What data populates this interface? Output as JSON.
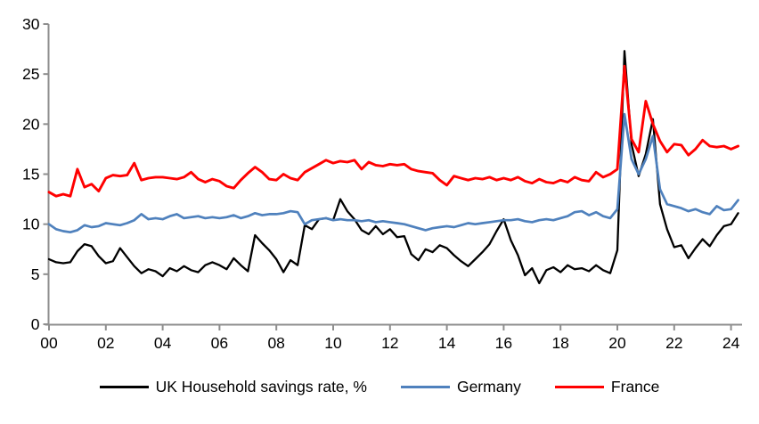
{
  "chart_data": {
    "type": "line",
    "title": "",
    "xlabel": "",
    "ylabel": "",
    "grid": false,
    "legend_position": "bottom-center",
    "axis_color": "#8e8e8e",
    "ylim": [
      0,
      30
    ],
    "xlim": [
      2000,
      2024.6
    ],
    "y_ticks": [
      0,
      5,
      10,
      15,
      20,
      25,
      30
    ],
    "x_tick_years": [
      2000,
      2002,
      2004,
      2006,
      2008,
      2010,
      2012,
      2014,
      2016,
      2018,
      2020,
      2022,
      2024
    ],
    "x_tick_labels": [
      "00",
      "02",
      "04",
      "06",
      "08",
      "10",
      "12",
      "14",
      "16",
      "18",
      "20",
      "22",
      "24"
    ],
    "x": [
      2000.0,
      2000.25,
      2000.5,
      2000.75,
      2001.0,
      2001.25,
      2001.5,
      2001.75,
      2002.0,
      2002.25,
      2002.5,
      2002.75,
      2003.0,
      2003.25,
      2003.5,
      2003.75,
      2004.0,
      2004.25,
      2004.5,
      2004.75,
      2005.0,
      2005.25,
      2005.5,
      2005.75,
      2006.0,
      2006.25,
      2006.5,
      2006.75,
      2007.0,
      2007.25,
      2007.5,
      2007.75,
      2008.0,
      2008.25,
      2008.5,
      2008.75,
      2009.0,
      2009.25,
      2009.5,
      2009.75,
      2010.0,
      2010.25,
      2010.5,
      2010.75,
      2011.0,
      2011.25,
      2011.5,
      2011.75,
      2012.0,
      2012.25,
      2012.5,
      2012.75,
      2013.0,
      2013.25,
      2013.5,
      2013.75,
      2014.0,
      2014.25,
      2014.5,
      2014.75,
      2015.0,
      2015.25,
      2015.5,
      2015.75,
      2016.0,
      2016.25,
      2016.5,
      2016.75,
      2017.0,
      2017.25,
      2017.5,
      2017.75,
      2018.0,
      2018.25,
      2018.5,
      2018.75,
      2019.0,
      2019.25,
      2019.5,
      2019.75,
      2020.0,
      2020.25,
      2020.5,
      2020.75,
      2021.0,
      2021.25,
      2021.5,
      2021.75,
      2022.0,
      2022.25,
      2022.5,
      2022.75,
      2023.0,
      2023.25,
      2023.5,
      2023.75,
      2024.0,
      2024.25
    ],
    "series": [
      {
        "name": "UK Household savings rate, %",
        "color": "#000000",
        "values": [
          6.5,
          6.2,
          6.1,
          6.2,
          7.3,
          8.0,
          7.8,
          6.8,
          6.1,
          6.3,
          7.6,
          6.7,
          5.8,
          5.1,
          5.5,
          5.3,
          4.8,
          5.6,
          5.3,
          5.8,
          5.4,
          5.2,
          5.9,
          6.2,
          5.9,
          5.5,
          6.6,
          5.9,
          5.3,
          8.9,
          8.1,
          7.4,
          6.5,
          5.2,
          6.4,
          5.9,
          9.9,
          9.5,
          10.5,
          10.6,
          10.4,
          12.5,
          11.3,
          10.5,
          9.4,
          9.0,
          9.8,
          9.0,
          9.5,
          8.7,
          8.8,
          7.0,
          6.4,
          7.5,
          7.2,
          7.9,
          7.6,
          6.9,
          6.3,
          5.8,
          6.5,
          7.2,
          8.0,
          9.3,
          10.5,
          8.4,
          6.9,
          4.9,
          5.6,
          4.1,
          5.4,
          5.7,
          5.2,
          5.9,
          5.5,
          5.6,
          5.3,
          5.9,
          5.4,
          5.1,
          7.4,
          27.3,
          18.0,
          14.8,
          17.0,
          20.5,
          12.0,
          9.5,
          7.7,
          7.9,
          6.6,
          7.6,
          8.5,
          7.8,
          8.9,
          9.8,
          10.0,
          11.1
        ]
      },
      {
        "name": "Germany",
        "color": "#4f81bd",
        "values": [
          10.0,
          9.5,
          9.3,
          9.2,
          9.4,
          9.9,
          9.7,
          9.8,
          10.1,
          10.0,
          9.9,
          10.1,
          10.4,
          11.0,
          10.5,
          10.6,
          10.5,
          10.8,
          11.0,
          10.6,
          10.7,
          10.8,
          10.6,
          10.7,
          10.6,
          10.7,
          10.9,
          10.6,
          10.8,
          11.1,
          10.9,
          11.0,
          11.0,
          11.1,
          11.3,
          11.2,
          10.0,
          10.4,
          10.5,
          10.6,
          10.4,
          10.5,
          10.4,
          10.4,
          10.3,
          10.4,
          10.2,
          10.3,
          10.2,
          10.1,
          10.0,
          9.8,
          9.6,
          9.4,
          9.6,
          9.7,
          9.8,
          9.7,
          9.9,
          10.1,
          10.0,
          10.1,
          10.2,
          10.3,
          10.4,
          10.4,
          10.5,
          10.3,
          10.2,
          10.4,
          10.5,
          10.4,
          10.6,
          10.8,
          11.2,
          11.3,
          10.9,
          11.2,
          10.8,
          10.6,
          11.5,
          21.0,
          16.5,
          15.0,
          16.5,
          18.8,
          13.5,
          12.0,
          11.8,
          11.6,
          11.3,
          11.5,
          11.2,
          11.0,
          11.8,
          11.4,
          11.5,
          12.4
        ]
      },
      {
        "name": "France",
        "color": "#ff0000",
        "values": [
          13.2,
          12.8,
          13.0,
          12.8,
          15.5,
          13.7,
          14.0,
          13.3,
          14.6,
          14.9,
          14.8,
          14.9,
          16.1,
          14.4,
          14.6,
          14.7,
          14.7,
          14.6,
          14.5,
          14.7,
          15.2,
          14.5,
          14.2,
          14.5,
          14.3,
          13.8,
          13.6,
          14.4,
          15.1,
          15.7,
          15.2,
          14.5,
          14.4,
          15.0,
          14.6,
          14.4,
          15.2,
          15.6,
          16.0,
          16.4,
          16.1,
          16.3,
          16.2,
          16.4,
          15.5,
          16.2,
          15.9,
          15.8,
          16.0,
          15.9,
          16.0,
          15.5,
          15.3,
          15.2,
          15.1,
          14.4,
          13.9,
          14.8,
          14.6,
          14.4,
          14.6,
          14.5,
          14.7,
          14.4,
          14.6,
          14.4,
          14.7,
          14.3,
          14.1,
          14.5,
          14.2,
          14.1,
          14.4,
          14.2,
          14.7,
          14.4,
          14.3,
          15.2,
          14.7,
          15.0,
          15.5,
          25.8,
          18.5,
          17.2,
          22.3,
          20.0,
          18.3,
          17.2,
          18.0,
          17.9,
          16.9,
          17.5,
          18.4,
          17.8,
          17.7,
          17.8,
          17.5,
          17.8
        ]
      }
    ]
  }
}
